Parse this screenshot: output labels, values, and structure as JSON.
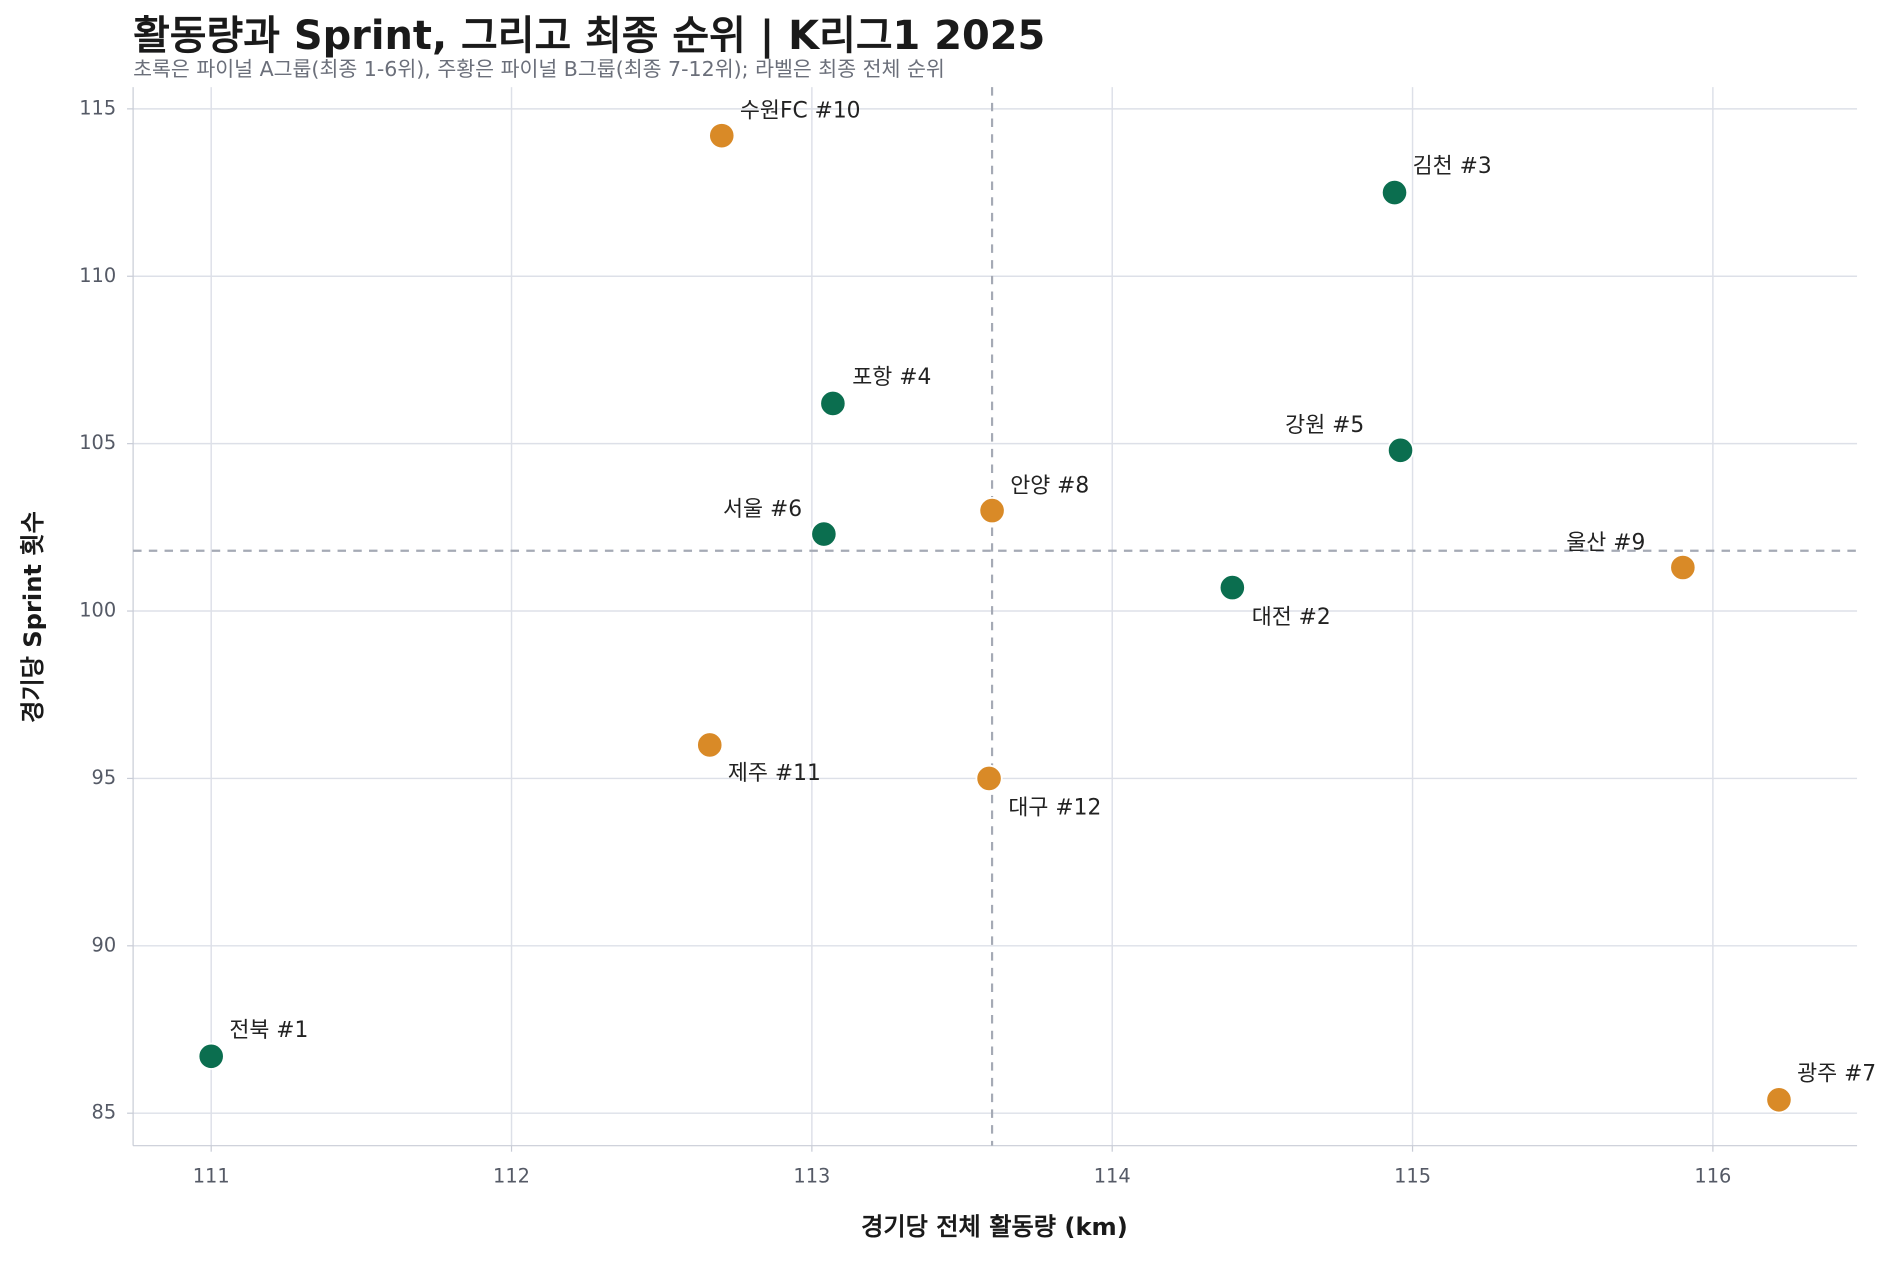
{
  "chart_data": {
    "type": "scatter",
    "title": "활동량과 Sprint, 그리고 최종 순위 | K리그1 2025",
    "subtitle": "초록은 파이널 A그룹(최종 1-6위), 주황은 파이널 B그룹(최종 7-12위); 라벨은 최종 전체 순위",
    "x_label": "경기당 전체 활동량 (km)",
    "y_label": "경기당 Sprint 횟수",
    "labels": [
      "전북 #1",
      "대전 #2",
      "김천 #3",
      "포항 #4",
      "강원 #5",
      "서울 #6",
      "광주 #7",
      "안양 #8",
      "울산 #9",
      "수원FC #10",
      "제주 #11",
      "대구 #12"
    ],
    "x": [
      111.0,
      114.4,
      114.94,
      113.07,
      114.96,
      113.04,
      116.22,
      113.6,
      115.9,
      112.7,
      112.66,
      113.59
    ],
    "y": [
      86.7,
      100.7,
      112.5,
      106.2,
      104.8,
      102.3,
      85.4,
      103.0,
      101.3,
      114.2,
      96.0,
      95.0
    ],
    "colors": [
      "#0b6e4f",
      "#0b6e4f",
      "#0b6e4f",
      "#0b6e4f",
      "#0b6e4f",
      "#0b6e4f",
      "#d98a27",
      "#d98a27",
      "#d98a27",
      "#d98a27",
      "#d98a27",
      "#d98a27"
    ],
    "reference_lines": {
      "x": 113.6,
      "y": 101.8
    },
    "xlim": [
      110.74,
      116.48
    ],
    "ylim": [
      84.03,
      115.65
    ],
    "xticks": [
      111,
      112,
      113,
      114,
      115,
      116
    ],
    "yticks": [
      85,
      90,
      95,
      100,
      105,
      110,
      115
    ],
    "grid": true
  }
}
